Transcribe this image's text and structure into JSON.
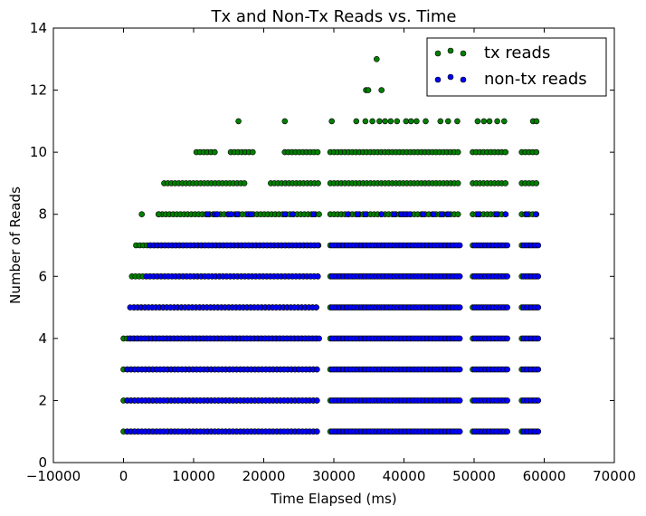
{
  "chart_data": {
    "type": "scatter",
    "title": "Tx and Non-Tx Reads vs. Time",
    "xlabel": "Time Elapsed (ms)",
    "ylabel": "Number of Reads",
    "xlim": [
      -10000,
      70000
    ],
    "ylim": [
      0,
      14
    ],
    "xticks": [
      -10000,
      0,
      10000,
      20000,
      30000,
      40000,
      50000,
      60000,
      70000
    ],
    "yticks": [
      0,
      2,
      4,
      6,
      8,
      10,
      12,
      14
    ],
    "grid": false,
    "legend_position": "top-right",
    "series": [
      {
        "name": "tx reads",
        "color": "#008000",
        "segments": [
          {
            "y": 1,
            "ranges": [
              [
                0,
                27900
              ],
              [
                29500,
                48000
              ],
              [
                49800,
                54800
              ],
              [
                56800,
                59200
              ]
            ]
          },
          {
            "y": 2,
            "ranges": [
              [
                0,
                27900
              ],
              [
                29500,
                48000
              ],
              [
                49800,
                54800
              ],
              [
                56800,
                59200
              ]
            ]
          },
          {
            "y": 3,
            "ranges": [
              [
                0,
                27900
              ],
              [
                29500,
                48000
              ],
              [
                49800,
                54800
              ],
              [
                56800,
                59200
              ]
            ]
          },
          {
            "y": 4,
            "ranges": [
              [
                0,
                27900
              ],
              [
                29500,
                48000
              ],
              [
                49800,
                54800
              ],
              [
                56800,
                59200
              ]
            ]
          },
          {
            "y": 5,
            "ranges": [
              [
                1500,
                27900
              ],
              [
                29500,
                48000
              ],
              [
                49800,
                54800
              ],
              [
                56800,
                59200
              ]
            ]
          },
          {
            "y": 6,
            "ranges": [
              [
                1200,
                27900
              ],
              [
                29500,
                48000
              ],
              [
                49800,
                54800
              ],
              [
                56800,
                59200
              ]
            ]
          },
          {
            "y": 7,
            "ranges": [
              [
                1800,
                27900
              ],
              [
                29500,
                48000
              ],
              [
                49800,
                54800
              ],
              [
                56800,
                59200
              ]
            ]
          },
          {
            "y": 8,
            "ranges": [
              [
                5000,
                27900
              ],
              [
                29500,
                48000
              ],
              [
                49800,
                54800
              ],
              [
                56800,
                59200
              ]
            ]
          },
          {
            "y": 9,
            "ranges": [
              [
                5800,
                17500
              ],
              [
                21000,
                27900
              ],
              [
                29500,
                48000
              ],
              [
                49800,
                54800
              ],
              [
                56800,
                59200
              ]
            ]
          },
          {
            "y": 10,
            "ranges": [
              [
                10400,
                13000
              ],
              [
                15300,
                18800
              ],
              [
                23000,
                27900
              ],
              [
                29500,
                48000
              ],
              [
                49800,
                54800
              ],
              [
                56800,
                59200
              ]
            ]
          }
        ],
        "points": [
          [
            2600,
            8
          ],
          [
            5000,
            8
          ],
          [
            16400,
            11
          ],
          [
            23000,
            11
          ],
          [
            29700,
            11
          ],
          [
            33200,
            11
          ],
          [
            34500,
            11
          ],
          [
            35500,
            11
          ],
          [
            36500,
            11
          ],
          [
            37300,
            11
          ],
          [
            38100,
            11
          ],
          [
            39000,
            11
          ],
          [
            40300,
            11
          ],
          [
            41000,
            11
          ],
          [
            41800,
            11
          ],
          [
            43100,
            11
          ],
          [
            45200,
            11
          ],
          [
            46300,
            11
          ],
          [
            47600,
            11
          ],
          [
            50500,
            11
          ],
          [
            51400,
            11
          ],
          [
            52200,
            11
          ],
          [
            53300,
            11
          ],
          [
            54300,
            11
          ],
          [
            58400,
            11
          ],
          [
            58900,
            11
          ],
          [
            34600,
            12
          ],
          [
            34900,
            12
          ],
          [
            36800,
            12
          ],
          [
            36100,
            13
          ]
        ]
      },
      {
        "name": "non-tx reads",
        "color": "#0000ff",
        "segments": [
          {
            "y": 1,
            "ranges": [
              [
                300,
                27900
              ],
              [
                29500,
                48000
              ],
              [
                49800,
                54800
              ],
              [
                56800,
                59200
              ]
            ]
          },
          {
            "y": 2,
            "ranges": [
              [
                300,
                27900
              ],
              [
                29500,
                48000
              ],
              [
                49800,
                54800
              ],
              [
                56800,
                59200
              ]
            ]
          },
          {
            "y": 3,
            "ranges": [
              [
                300,
                27900
              ],
              [
                29500,
                48000
              ],
              [
                49800,
                54800
              ],
              [
                56800,
                59200
              ]
            ]
          },
          {
            "y": 4,
            "ranges": [
              [
                600,
                27900
              ],
              [
                29500,
                48000
              ],
              [
                49800,
                54800
              ],
              [
                56800,
                59200
              ]
            ]
          },
          {
            "y": 5,
            "ranges": [
              [
                700,
                27900
              ],
              [
                29500,
                48000
              ],
              [
                49800,
                54800
              ],
              [
                56800,
                59200
              ]
            ]
          },
          {
            "y": 6,
            "ranges": [
              [
                3000,
                27900
              ],
              [
                29500,
                48000
              ],
              [
                49800,
                54800
              ],
              [
                56800,
                59200
              ]
            ]
          },
          {
            "y": 7,
            "ranges": [
              [
                3500,
                27900
              ],
              [
                29500,
                48000
              ],
              [
                49800,
                54800
              ],
              [
                56800,
                59200
              ]
            ]
          }
        ],
        "points": [
          [
            12000,
            8
          ],
          [
            13000,
            8
          ],
          [
            13400,
            8
          ],
          [
            15000,
            8
          ],
          [
            15400,
            8
          ],
          [
            16200,
            8
          ],
          [
            17800,
            8
          ],
          [
            18200,
            8
          ],
          [
            23000,
            8
          ],
          [
            24100,
            8
          ],
          [
            27100,
            8
          ],
          [
            32000,
            8
          ],
          [
            33400,
            8
          ],
          [
            34500,
            8
          ],
          [
            36800,
            8
          ],
          [
            38600,
            8
          ],
          [
            39600,
            8
          ],
          [
            40200,
            8
          ],
          [
            40800,
            8
          ],
          [
            42700,
            8
          ],
          [
            44200,
            8
          ],
          [
            45400,
            8
          ],
          [
            46300,
            8
          ],
          [
            50600,
            8
          ],
          [
            53200,
            8
          ],
          [
            54500,
            8
          ],
          [
            57500,
            8
          ],
          [
            58800,
            8
          ]
        ]
      }
    ]
  }
}
